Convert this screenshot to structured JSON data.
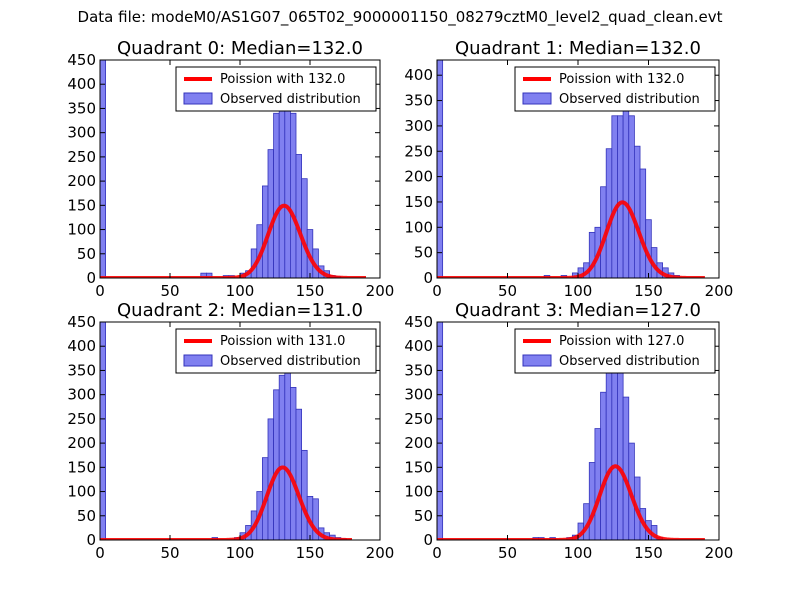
{
  "figure": {
    "suptitle": "Data file: modeM0/AS1G07_065T02_9000001150_08279cztM0_level2_quad_clean.evt"
  },
  "colors": {
    "hist_fill": "#8080f0",
    "hist_edge": "#3333bb",
    "poisson_line": "#ff0000",
    "axes": "#000000"
  },
  "chart_data": [
    {
      "type": "bar",
      "title": "Quadrant 0: Median=132.0",
      "xlim": [
        0,
        200
      ],
      "ylim": [
        0,
        450
      ],
      "xticks": [
        0,
        50,
        100,
        150,
        200
      ],
      "yticks": [
        0,
        50,
        100,
        150,
        200,
        250,
        300,
        350,
        400,
        450
      ],
      "legend": {
        "position": "top-right",
        "entries": [
          "Poission with 132.0",
          "Observed distribution"
        ]
      },
      "series": [
        {
          "name": "Observed distribution",
          "kind": "histogram",
          "bin_width": 4,
          "bins": [
            [
              0,
              450
            ],
            [
              72,
              10
            ],
            [
              76,
              10
            ],
            [
              88,
              5
            ],
            [
              92,
              5
            ],
            [
              100,
              10
            ],
            [
              104,
              15
            ],
            [
              108,
              60
            ],
            [
              112,
              110
            ],
            [
              116,
              190
            ],
            [
              120,
              265
            ],
            [
              124,
              340
            ],
            [
              128,
              350
            ],
            [
              132,
              385
            ],
            [
              136,
              340
            ],
            [
              140,
              255
            ],
            [
              144,
              205
            ],
            [
              148,
              100
            ],
            [
              152,
              60
            ],
            [
              156,
              25
            ],
            [
              160,
              15
            ],
            [
              164,
              5
            ],
            [
              168,
              3
            ]
          ]
        },
        {
          "name": "Poission with 132.0",
          "kind": "poisson",
          "mean": 132.0,
          "scale": 4300,
          "x_range": [
            0,
            190
          ]
        }
      ]
    },
    {
      "type": "bar",
      "title": "Quadrant 1: Median=132.0",
      "xlim": [
        0,
        200
      ],
      "ylim": [
        0,
        430
      ],
      "xticks": [
        0,
        50,
        100,
        150,
        200
      ],
      "yticks": [
        0,
        50,
        100,
        150,
        200,
        250,
        300,
        350,
        400
      ],
      "legend": {
        "position": "top-right",
        "entries": [
          "Poission with 132.0",
          "Observed distribution"
        ]
      },
      "series": [
        {
          "name": "Observed distribution",
          "kind": "histogram",
          "bin_width": 4,
          "bins": [
            [
              0,
              430
            ],
            [
              76,
              5
            ],
            [
              88,
              5
            ],
            [
              96,
              10
            ],
            [
              100,
              20
            ],
            [
              104,
              30
            ],
            [
              108,
              90
            ],
            [
              112,
              100
            ],
            [
              116,
              180
            ],
            [
              120,
              255
            ],
            [
              124,
              320
            ],
            [
              128,
              320
            ],
            [
              132,
              355
            ],
            [
              136,
              320
            ],
            [
              140,
              260
            ],
            [
              144,
              215
            ],
            [
              148,
              115
            ],
            [
              152,
              60
            ],
            [
              156,
              30
            ],
            [
              160,
              20
            ],
            [
              164,
              10
            ],
            [
              168,
              5
            ]
          ]
        },
        {
          "name": "Poission with 132.0",
          "kind": "poisson",
          "mean": 132.0,
          "scale": 4300,
          "x_range": [
            0,
            190
          ]
        }
      ]
    },
    {
      "type": "bar",
      "title": "Quadrant 2: Median=131.0",
      "xlim": [
        0,
        200
      ],
      "ylim": [
        0,
        450
      ],
      "xticks": [
        0,
        50,
        100,
        150,
        200
      ],
      "yticks": [
        0,
        50,
        100,
        150,
        200,
        250,
        300,
        350,
        400,
        450
      ],
      "legend": {
        "position": "top-right",
        "entries": [
          "Poission with 131.0",
          "Observed distribution"
        ]
      },
      "series": [
        {
          "name": "Observed distribution",
          "kind": "histogram",
          "bin_width": 4,
          "bins": [
            [
              0,
              450
            ],
            [
              80,
              5
            ],
            [
              96,
              5
            ],
            [
              100,
              15
            ],
            [
              104,
              30
            ],
            [
              108,
              60
            ],
            [
              112,
              100
            ],
            [
              116,
              170
            ],
            [
              120,
              250
            ],
            [
              124,
              310
            ],
            [
              128,
              340
            ],
            [
              132,
              365
            ],
            [
              136,
              315
            ],
            [
              140,
              270
            ],
            [
              144,
              185
            ],
            [
              148,
              90
            ],
            [
              152,
              85
            ],
            [
              156,
              25
            ],
            [
              160,
              15
            ],
            [
              164,
              10
            ],
            [
              168,
              5
            ],
            [
              172,
              3
            ]
          ]
        },
        {
          "name": "Poission with 131.0",
          "kind": "poisson",
          "mean": 131.0,
          "scale": 4300,
          "x_range": [
            0,
            180
          ]
        }
      ]
    },
    {
      "type": "bar",
      "title": "Quadrant 3: Median=127.0",
      "xlim": [
        0,
        200
      ],
      "ylim": [
        0,
        450
      ],
      "xticks": [
        0,
        50,
        100,
        150,
        200
      ],
      "yticks": [
        0,
        50,
        100,
        150,
        200,
        250,
        300,
        350,
        400,
        450
      ],
      "legend": {
        "position": "top-right",
        "entries": [
          "Poission with 127.0",
          "Observed distribution"
        ]
      },
      "series": [
        {
          "name": "Observed distribution",
          "kind": "histogram",
          "bin_width": 4,
          "bins": [
            [
              0,
              450
            ],
            [
              68,
              5
            ],
            [
              72,
              5
            ],
            [
              80,
              5
            ],
            [
              92,
              5
            ],
            [
              96,
              10
            ],
            [
              100,
              35
            ],
            [
              104,
              75
            ],
            [
              108,
              160
            ],
            [
              112,
              230
            ],
            [
              116,
              305
            ],
            [
              120,
              375
            ],
            [
              124,
              375
            ],
            [
              128,
              360
            ],
            [
              132,
              295
            ],
            [
              136,
              200
            ],
            [
              140,
              130
            ],
            [
              144,
              65
            ],
            [
              148,
              40
            ],
            [
              152,
              30
            ],
            [
              156,
              5
            ]
          ]
        },
        {
          "name": "Poission with 127.0",
          "kind": "poisson",
          "mean": 127.0,
          "scale": 4300,
          "x_range": [
            0,
            190
          ]
        }
      ]
    }
  ]
}
